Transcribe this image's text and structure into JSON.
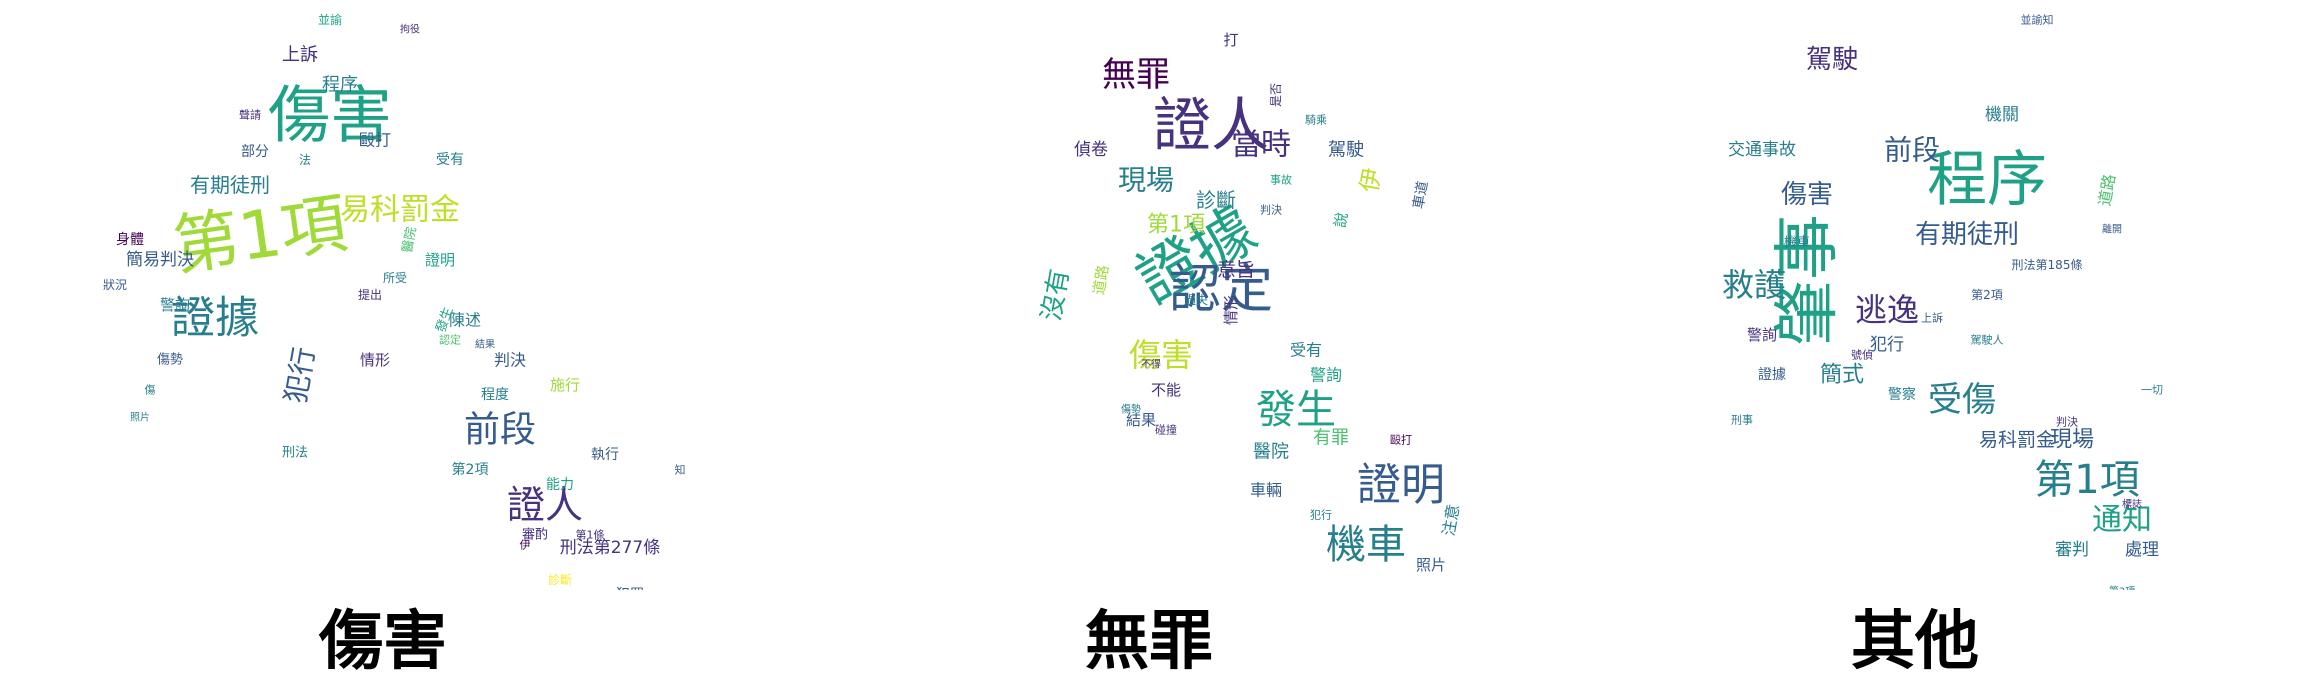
{
  "palette": [
    "#440154",
    "#46327e",
    "#365c8d",
    "#277f8e",
    "#1fa187",
    "#4ac16d",
    "#a0da39",
    "#fde725"
  ],
  "panels": [
    {
      "label": "傷害",
      "words": [
        {
          "t": "第1項",
          "s": 66,
          "c": "#a0da39"
        },
        {
          "t": "傷害",
          "s": 62,
          "c": "#1fa187"
        },
        {
          "t": "證據",
          "s": 44,
          "c": "#277f8e"
        },
        {
          "t": "易科罰金",
          "s": 30,
          "c": "#bddf26"
        },
        {
          "t": "前段",
          "s": 36,
          "c": "#365c8d"
        },
        {
          "t": "證人",
          "s": 38,
          "c": "#46327e"
        },
        {
          "t": "犯行",
          "s": 28,
          "c": "#365c8d"
        },
        {
          "t": "有期徒刑",
          "s": 20,
          "c": "#277f8e"
        },
        {
          "t": "簡易判決",
          "s": 17,
          "c": "#365c8d"
        },
        {
          "t": "刑法第277條",
          "s": 17,
          "c": "#46327e"
        },
        {
          "t": "程序",
          "s": 18,
          "c": "#277f8e"
        },
        {
          "t": "上訴",
          "s": 18,
          "c": "#46327e"
        },
        {
          "t": "毆打",
          "s": 16,
          "c": "#365c8d"
        },
        {
          "t": "陳述",
          "s": 16,
          "c": "#277f8e"
        },
        {
          "t": "情形",
          "s": 15,
          "c": "#46327e"
        },
        {
          "t": "證明",
          "s": 15,
          "c": "#1fa187"
        },
        {
          "t": "警詢",
          "s": 15,
          "c": "#277f8e"
        },
        {
          "t": "身體",
          "s": 14,
          "c": "#440154"
        },
        {
          "t": "部分",
          "s": 14,
          "c": "#365c8d"
        },
        {
          "t": "受有",
          "s": 14,
          "c": "#277f8e"
        },
        {
          "t": "判決",
          "s": 16,
          "c": "#365c8d"
        },
        {
          "t": "施行",
          "s": 15,
          "c": "#a0da39"
        },
        {
          "t": "程度",
          "s": 14,
          "c": "#277f8e"
        },
        {
          "t": "能力",
          "s": 14,
          "c": "#1fa187"
        },
        {
          "t": "執行",
          "s": 14,
          "c": "#365c8d"
        },
        {
          "t": "第2項",
          "s": 14,
          "c": "#277f8e"
        },
        {
          "t": "審酌",
          "s": 13,
          "c": "#46327e"
        },
        {
          "t": "犯罪",
          "s": 14,
          "c": "#365c8d"
        },
        {
          "t": "處刑",
          "s": 13,
          "c": "#277f8e"
        },
        {
          "t": "刑法",
          "s": 13,
          "c": "#277f8e"
        },
        {
          "t": "傷勢",
          "s": 13,
          "c": "#365c8d"
        },
        {
          "t": "醫院",
          "s": 13,
          "c": "#4ac16d"
        },
        {
          "t": "發生",
          "s": 13,
          "c": "#1fa187"
        },
        {
          "t": "提出",
          "s": 12,
          "c": "#46327e"
        },
        {
          "t": "並諭",
          "s": 12,
          "c": "#1fa187"
        },
        {
          "t": "狀況",
          "s": 12,
          "c": "#365c8d"
        },
        {
          "t": "所受",
          "s": 12,
          "c": "#277f8e"
        },
        {
          "t": "法",
          "s": 12,
          "c": "#277f8e"
        },
        {
          "t": "聲請",
          "s": 11,
          "c": "#46327e"
        },
        {
          "t": "診斷",
          "s": 12,
          "c": "#fde725"
        },
        {
          "t": "第1條",
          "s": 11,
          "c": "#46327e"
        },
        {
          "t": "知",
          "s": 11,
          "c": "#365c8d"
        },
        {
          "t": "伊",
          "s": 11,
          "c": "#440154"
        },
        {
          "t": "傷",
          "s": 11,
          "c": "#277f8e"
        },
        {
          "t": "認定",
          "s": 11,
          "c": "#4ac16d"
        },
        {
          "t": "拘役",
          "s": 10,
          "c": "#46327e"
        },
        {
          "t": "結果",
          "s": 10,
          "c": "#365c8d"
        },
        {
          "t": "照片",
          "s": 10,
          "c": "#277f8e"
        }
      ]
    },
    {
      "label": "無罪",
      "words": [
        {
          "t": "證據",
          "s": 62,
          "c": "#1fa187"
        },
        {
          "t": "證人",
          "s": 58,
          "c": "#46327e"
        },
        {
          "t": "認定",
          "s": 52,
          "c": "#365c8d"
        },
        {
          "t": "證明",
          "s": 44,
          "c": "#365c8d"
        },
        {
          "t": "機車",
          "s": 40,
          "c": "#277f8e"
        },
        {
          "t": "發生",
          "s": 40,
          "c": "#1fa187"
        },
        {
          "t": "無罪",
          "s": 34,
          "c": "#440154"
        },
        {
          "t": "傷害",
          "s": 32,
          "c": "#bddf26"
        },
        {
          "t": "當時",
          "s": 30,
          "c": "#46327e"
        },
        {
          "t": "現場",
          "s": 28,
          "c": "#277f8e"
        },
        {
          "t": "沒有",
          "s": 26,
          "c": "#1fa187"
        },
        {
          "t": "第1項",
          "s": 22,
          "c": "#a0da39"
        },
        {
          "t": "伊",
          "s": 24,
          "c": "#bddf26"
        },
        {
          "t": "診斷",
          "s": 20,
          "c": "#277f8e"
        },
        {
          "t": "意旨",
          "s": 19,
          "c": "#46327e"
        },
        {
          "t": "駕駛",
          "s": 18,
          "c": "#365c8d"
        },
        {
          "t": "偵卷",
          "s": 17,
          "c": "#46327e"
        },
        {
          "t": "有罪",
          "s": 18,
          "c": "#4ac16d"
        },
        {
          "t": "醫院",
          "s": 18,
          "c": "#277f8e"
        },
        {
          "t": "車輛",
          "s": 16,
          "c": "#365c8d"
        },
        {
          "t": "警詢",
          "s": 16,
          "c": "#1fa187"
        },
        {
          "t": "受有",
          "s": 16,
          "c": "#277f8e"
        },
        {
          "t": "情形",
          "s": 15,
          "c": "#46327e"
        },
        {
          "t": "結果",
          "s": 15,
          "c": "#365c8d"
        },
        {
          "t": "不能",
          "s": 15,
          "c": "#46327e"
        },
        {
          "t": "注意",
          "s": 16,
          "c": "#277f8e"
        },
        {
          "t": "照片",
          "s": 15,
          "c": "#365c8d"
        },
        {
          "t": "道路",
          "s": 15,
          "c": "#a0da39"
        },
        {
          "t": "打",
          "s": 15,
          "c": "#46327e"
        },
        {
          "t": "說",
          "s": 15,
          "c": "#1fa187"
        },
        {
          "t": "車道",
          "s": 14,
          "c": "#365c8d"
        },
        {
          "t": "過失",
          "s": 12,
          "c": "#277f8e"
        },
        {
          "t": "是否",
          "s": 12,
          "c": "#46327e"
        },
        {
          "t": "判決",
          "s": 11,
          "c": "#365c8d"
        },
        {
          "t": "毆打",
          "s": 11,
          "c": "#440154"
        },
        {
          "t": "犯行",
          "s": 11,
          "c": "#277f8e"
        },
        {
          "t": "責任",
          "s": 11,
          "c": "#365c8d"
        },
        {
          "t": "碰撞",
          "s": 11,
          "c": "#46327e"
        },
        {
          "t": "騎乘",
          "s": 11,
          "c": "#277f8e"
        },
        {
          "t": "事故",
          "s": 11,
          "c": "#1fa187"
        },
        {
          "t": "不得",
          "s": 10,
          "c": "#46327e"
        },
        {
          "t": "傷勢",
          "s": 10,
          "c": "#277f8e"
        }
      ]
    },
    {
      "label": "其他",
      "words": [
        {
          "t": "肇事",
          "s": 66,
          "c": "#1fa187"
        },
        {
          "t": "程序",
          "s": 60,
          "c": "#1fa187"
        },
        {
          "t": "第1項",
          "s": 40,
          "c": "#277f8e"
        },
        {
          "t": "受傷",
          "s": 34,
          "c": "#277f8e"
        },
        {
          "t": "逃逸",
          "s": 32,
          "c": "#46327e"
        },
        {
          "t": "救護",
          "s": 32,
          "c": "#277f8e"
        },
        {
          "t": "通知",
          "s": 30,
          "c": "#1fa187"
        },
        {
          "t": "前段",
          "s": 28,
          "c": "#365c8d"
        },
        {
          "t": "傷害",
          "s": 26,
          "c": "#365c8d"
        },
        {
          "t": "有期徒刑",
          "s": 26,
          "c": "#365c8d"
        },
        {
          "t": "駕駛",
          "s": 26,
          "c": "#46327e"
        },
        {
          "t": "簡式",
          "s": 22,
          "c": "#277f8e"
        },
        {
          "t": "現場",
          "s": 22,
          "c": "#365c8d"
        },
        {
          "t": "易科罰金",
          "s": 19,
          "c": "#365c8d"
        },
        {
          "t": "審判",
          "s": 17,
          "c": "#277f8e"
        },
        {
          "t": "處理",
          "s": 17,
          "c": "#365c8d"
        },
        {
          "t": "交通事故",
          "s": 17,
          "c": "#277f8e"
        },
        {
          "t": "犯行",
          "s": 17,
          "c": "#365c8d"
        },
        {
          "t": "機關",
          "s": 17,
          "c": "#277f8e"
        },
        {
          "t": "道路",
          "s": 16,
          "c": "#4ac16d"
        },
        {
          "t": "警詢",
          "s": 15,
          "c": "#46327e"
        },
        {
          "t": "警察",
          "s": 14,
          "c": "#277f8e"
        },
        {
          "t": "證據",
          "s": 14,
          "c": "#365c8d"
        },
        {
          "t": "機車",
          "s": 13,
          "c": "#277f8e"
        },
        {
          "t": "刑法第185條",
          "s": 12,
          "c": "#365c8d"
        },
        {
          "t": "第2項",
          "s": 12,
          "c": "#365c8d"
        },
        {
          "t": "駕駛人",
          "s": 11,
          "c": "#277f8e"
        },
        {
          "t": "上訴",
          "s": 11,
          "c": "#365c8d"
        },
        {
          "t": "刑事",
          "s": 11,
          "c": "#277f8e"
        },
        {
          "t": "判決",
          "s": 11,
          "c": "#46327e"
        },
        {
          "t": "並諭知",
          "s": 11,
          "c": "#365c8d"
        },
        {
          "t": "號偵",
          "s": 11,
          "c": "#46327e"
        },
        {
          "t": "一切",
          "s": 11,
          "c": "#277f8e"
        },
        {
          "t": "標誌",
          "s": 10,
          "c": "#46327e"
        },
        {
          "t": "第3項",
          "s": 10,
          "c": "#277f8e"
        },
        {
          "t": "離開",
          "s": 10,
          "c": "#365c8d"
        }
      ]
    }
  ]
}
